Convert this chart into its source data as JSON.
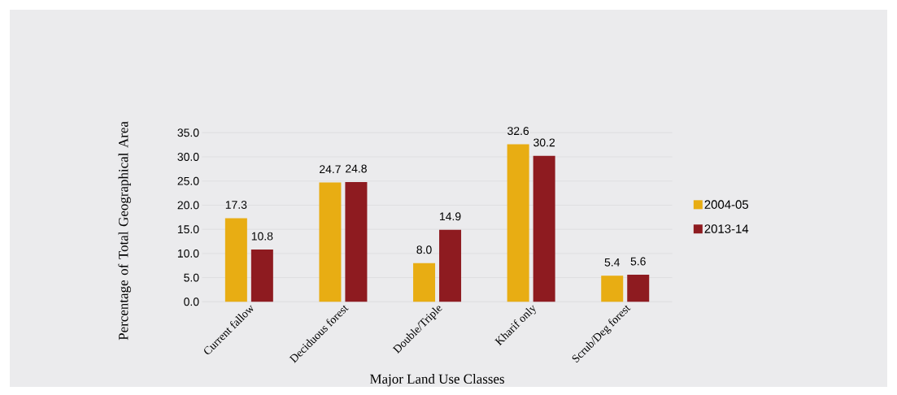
{
  "chart_data": {
    "type": "bar",
    "xlabel": "Major Land Use Classes",
    "ylabel": "Percentage of Total Geographical Area",
    "categories": [
      "Current fallow",
      "Deciduous forest",
      "Double/Triple",
      "Kharif only",
      "Scrub/Deg forest"
    ],
    "series": [
      {
        "name": "2004-05",
        "color": "#e8ad13",
        "values": [
          17.3,
          24.7,
          8.0,
          32.6,
          5.4
        ],
        "value_labels": [
          "17.3",
          "24.7",
          "8.0",
          "32.6",
          "5.4"
        ]
      },
      {
        "name": "2013-14",
        "color": "#8e1b20",
        "values": [
          10.8,
          24.8,
          14.9,
          30.2,
          5.6
        ],
        "value_labels": [
          "10.8",
          "24.8",
          "14.9",
          "30.2",
          "5.6"
        ]
      }
    ],
    "ylim": [
      0,
      35
    ],
    "yticks": [
      {
        "value": 0,
        "label": "0.0"
      },
      {
        "value": 5,
        "label": "5.0"
      },
      {
        "value": 10,
        "label": "10.0"
      },
      {
        "value": 15,
        "label": "15.0"
      },
      {
        "value": 20,
        "label": "20.0"
      },
      {
        "value": 25,
        "label": "25.0"
      },
      {
        "value": 30,
        "label": "30.0"
      },
      {
        "value": 35,
        "label": "35.0"
      }
    ],
    "grid": "y",
    "legend": "right"
  }
}
